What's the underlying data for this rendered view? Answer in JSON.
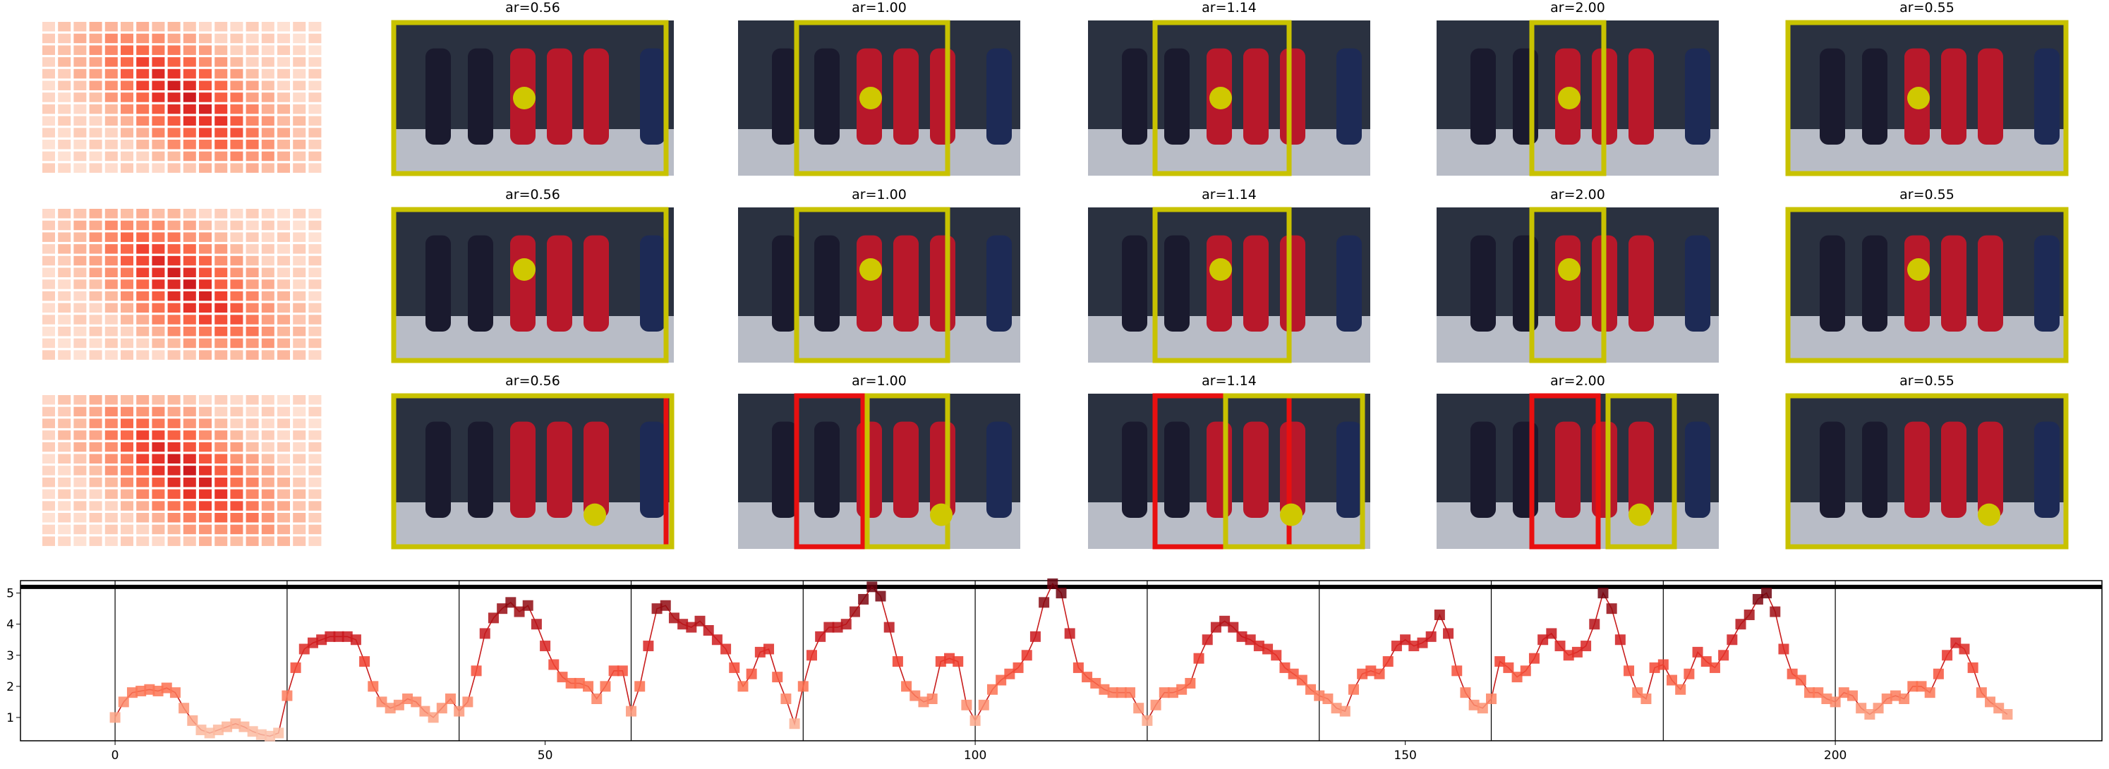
{
  "panel_titles": [
    [
      "ar=0.56",
      "ar=1.00",
      "ar=1.14",
      "ar=2.00",
      "ar=0.55"
    ],
    [
      "ar=0.56",
      "ar=1.00",
      "ar=1.14",
      "ar=2.00",
      "ar=0.55"
    ],
    [
      "ar=0.56",
      "ar=1.00",
      "ar=1.14",
      "ar=2.00",
      "ar=0.55"
    ]
  ],
  "chart_data": {
    "type": "line",
    "colormap": "Reds",
    "line_color": "#c81d1d",
    "x": [
      0,
      1,
      2,
      3,
      4,
      5,
      6,
      7,
      8,
      9,
      10,
      11,
      12,
      13,
      14,
      15,
      16,
      17,
      18,
      19,
      20,
      21,
      22,
      23,
      24,
      25,
      26,
      27,
      28,
      29,
      30,
      31,
      32,
      33,
      34,
      35,
      36,
      37,
      38,
      39,
      40,
      41,
      42,
      43,
      44,
      45,
      46,
      47,
      48,
      49,
      50,
      51,
      52,
      53,
      54,
      55,
      56,
      57,
      58,
      59,
      60,
      61,
      62,
      63,
      64,
      65,
      66,
      67,
      68,
      69,
      70,
      71,
      72,
      73,
      74,
      75,
      76,
      77,
      78,
      79,
      80,
      81,
      82,
      83,
      84,
      85,
      86,
      87,
      88,
      89,
      90,
      91,
      92,
      93,
      94,
      95,
      96,
      97,
      98,
      99,
      100,
      101,
      102,
      103,
      104,
      105,
      106,
      107,
      108,
      109,
      110,
      111,
      112,
      113,
      114,
      115,
      116,
      117,
      118,
      119,
      120,
      121,
      122,
      123,
      124,
      125,
      126,
      127,
      128,
      129,
      130,
      131,
      132,
      133,
      134,
      135,
      136,
      137,
      138,
      139,
      140,
      141,
      142,
      143,
      144,
      145,
      146,
      147,
      148,
      149,
      150,
      151,
      152,
      153,
      154,
      155,
      156,
      157,
      158,
      159,
      160,
      161,
      162,
      163,
      164,
      165,
      166,
      167,
      168,
      169,
      170,
      171,
      172,
      173,
      174,
      175,
      176,
      177,
      178,
      179,
      180,
      181,
      182,
      183,
      184,
      185,
      186,
      187,
      188,
      189,
      190,
      191,
      192,
      193,
      194,
      195,
      196,
      197,
      198,
      199,
      200,
      201,
      202,
      203,
      204,
      205,
      206,
      207,
      208,
      209,
      210,
      211,
      212,
      213,
      214,
      215,
      216,
      217,
      218,
      219,
      220
    ],
    "values": [
      1.0,
      1.5,
      1.8,
      1.85,
      1.9,
      1.85,
      1.95,
      1.8,
      1.3,
      0.9,
      0.6,
      0.5,
      0.6,
      0.7,
      0.8,
      0.7,
      0.55,
      0.45,
      0.4,
      0.5,
      1.7,
      2.6,
      3.2,
      3.4,
      3.5,
      3.6,
      3.6,
      3.6,
      3.5,
      2.8,
      2.0,
      1.5,
      1.3,
      1.4,
      1.6,
      1.5,
      1.2,
      1.0,
      1.3,
      1.6,
      1.2,
      1.5,
      2.5,
      3.7,
      4.2,
      4.5,
      4.7,
      4.4,
      4.6,
      4.0,
      3.3,
      2.7,
      2.3,
      2.1,
      2.1,
      2.0,
      1.6,
      2.0,
      2.5,
      2.5,
      1.2,
      2.0,
      3.3,
      4.5,
      4.6,
      4.2,
      4.0,
      3.9,
      4.1,
      3.8,
      3.5,
      3.2,
      2.6,
      2.0,
      2.4,
      3.1,
      3.2,
      2.3,
      1.6,
      0.8,
      2.0,
      3.0,
      3.6,
      3.9,
      3.9,
      4.0,
      4.4,
      4.8,
      5.2,
      4.9,
      3.9,
      2.8,
      2.0,
      1.7,
      1.5,
      1.6,
      2.8,
      2.9,
      2.8,
      1.4,
      0.9,
      1.4,
      1.9,
      2.2,
      2.4,
      2.6,
      3.0,
      3.6,
      4.7,
      5.3,
      5.0,
      3.7,
      2.6,
      2.3,
      2.1,
      1.9,
      1.8,
      1.8,
      1.8,
      1.3,
      0.9,
      1.4,
      1.8,
      1.8,
      1.9,
      2.1,
      2.9,
      3.5,
      3.9,
      4.1,
      3.9,
      3.6,
      3.5,
      3.3,
      3.2,
      3.0,
      2.6,
      2.4,
      2.2,
      1.9,
      1.7,
      1.6,
      1.3,
      1.2,
      1.9,
      2.4,
      2.5,
      2.4,
      2.8,
      3.3,
      3.5,
      3.3,
      3.4,
      3.6,
      4.3,
      3.7,
      2.5,
      1.8,
      1.4,
      1.3,
      1.6,
      2.8,
      2.6,
      2.3,
      2.5,
      2.9,
      3.5,
      3.7,
      3.3,
      3.0,
      3.1,
      3.3,
      4.0,
      5.0,
      4.5,
      3.5,
      2.5,
      1.8,
      1.6,
      2.6,
      2.7,
      2.2,
      1.9,
      2.4,
      3.1,
      2.8,
      2.6,
      3.0,
      3.5,
      4.0,
      4.3,
      4.8,
      5.0,
      4.4,
      3.2,
      2.4,
      2.2,
      1.8,
      1.8,
      1.6,
      1.5,
      1.8,
      1.7,
      1.3,
      1.1,
      1.3,
      1.6,
      1.7,
      1.6,
      2.0,
      2.0,
      1.8,
      2.4,
      3.0,
      3.4,
      3.2,
      2.6,
      1.8,
      1.5,
      1.3,
      1.1
    ],
    "xlim": [
      -11,
      231
    ],
    "ylim": [
      0.25,
      5.4
    ],
    "xticks": [
      0,
      50,
      100,
      150,
      200
    ],
    "yticks": [
      1,
      2,
      3,
      4,
      5
    ],
    "vlines": [
      0,
      20,
      40,
      60,
      80,
      100,
      120,
      140,
      160,
      180,
      200
    ],
    "hline": 5.2
  }
}
